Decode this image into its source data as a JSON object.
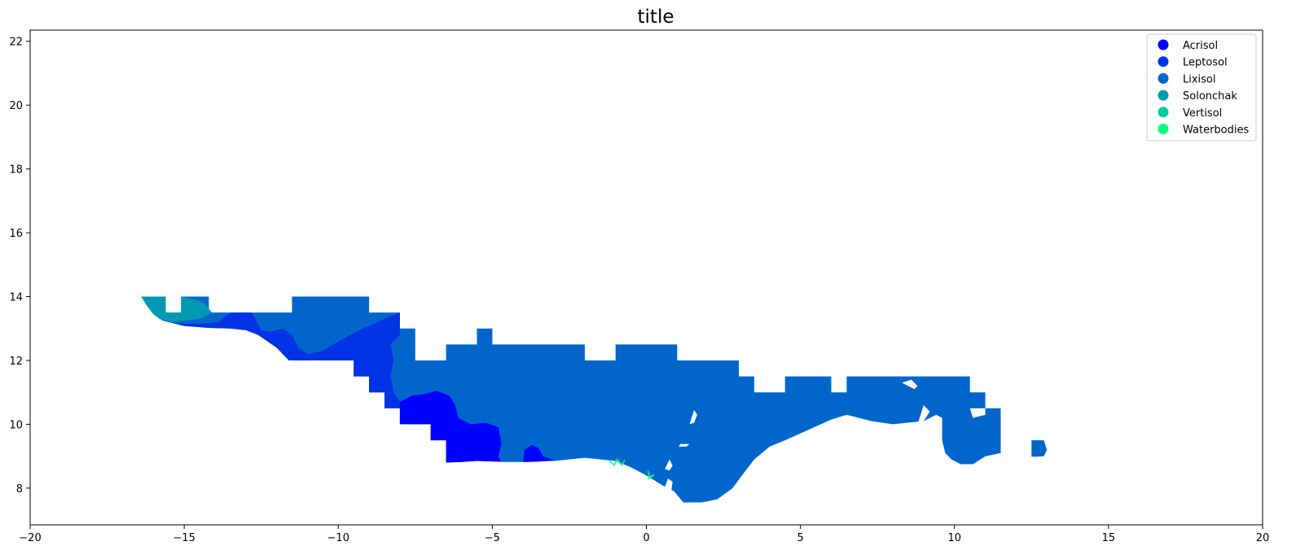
{
  "chart_data": {
    "type": "map",
    "title": "title",
    "xlim": [
      -20,
      20
    ],
    "ylim": [
      6.85,
      22.35
    ],
    "x_ticks": [
      -20,
      -15,
      -10,
      -5,
      0,
      5,
      10,
      15,
      20
    ],
    "x_tick_labels": [
      "−20",
      "−15",
      "−10",
      "−5",
      "0",
      "5",
      "10",
      "15",
      "20"
    ],
    "y_ticks": [
      8,
      10,
      12,
      14,
      16,
      18,
      20,
      22
    ],
    "y_tick_labels": [
      "8",
      "10",
      "12",
      "14",
      "16",
      "18",
      "20",
      "22"
    ],
    "legend_position": "top-right",
    "legend": [
      {
        "label": "Acrisol",
        "color": "#0000ff"
      },
      {
        "label": "Leptosol",
        "color": "#0033e6"
      },
      {
        "label": "Lixisol",
        "color": "#0066cc"
      },
      {
        "label": "Solonchak",
        "color": "#0099b3"
      },
      {
        "label": "Vertisol",
        "color": "#00cc99"
      },
      {
        "label": "Waterbodies",
        "color": "#00ff80"
      }
    ],
    "regions": [
      {
        "class": "Lixisol",
        "polygon": [
          [
            -16.4,
            14.0
          ],
          [
            -15.6,
            14.0
          ],
          [
            -15.6,
            13.5
          ],
          [
            -15.1,
            13.5
          ],
          [
            -15.1,
            14.0
          ],
          [
            -14.2,
            14.0
          ],
          [
            -14.2,
            13.5
          ],
          [
            -11.5,
            13.5
          ],
          [
            -11.5,
            14.0
          ],
          [
            -9.0,
            14.0
          ],
          [
            -9.0,
            13.5
          ],
          [
            -8.0,
            13.5
          ],
          [
            -8.0,
            13.0
          ],
          [
            -7.5,
            13.0
          ],
          [
            -7.5,
            12.0
          ],
          [
            -6.5,
            12.0
          ],
          [
            -6.5,
            12.5
          ],
          [
            -5.5,
            12.5
          ],
          [
            -5.5,
            13.0
          ],
          [
            -5.0,
            13.0
          ],
          [
            -5.0,
            12.5
          ],
          [
            -2.0,
            12.5
          ],
          [
            -2.0,
            12.0
          ],
          [
            -1.0,
            12.0
          ],
          [
            -1.0,
            12.5
          ],
          [
            1.0,
            12.5
          ],
          [
            1.0,
            12.0
          ],
          [
            3.0,
            12.0
          ],
          [
            3.0,
            11.5
          ],
          [
            3.5,
            11.5
          ],
          [
            3.5,
            11.0
          ],
          [
            4.5,
            11.0
          ],
          [
            4.5,
            11.5
          ],
          [
            6.0,
            11.5
          ],
          [
            6.0,
            11.0
          ],
          [
            6.5,
            11.0
          ],
          [
            6.5,
            11.5
          ],
          [
            10.5,
            11.5
          ],
          [
            10.5,
            11.0
          ],
          [
            11.0,
            11.0
          ],
          [
            11.0,
            10.5
          ],
          [
            11.5,
            10.5
          ],
          [
            11.5,
            9.1
          ],
          [
            11.0,
            9.0
          ],
          [
            10.6,
            8.75
          ],
          [
            10.2,
            8.75
          ],
          [
            9.9,
            8.9
          ],
          [
            9.7,
            9.1
          ],
          [
            9.6,
            9.5
          ],
          [
            9.6,
            10.2
          ],
          [
            9.4,
            10.3
          ],
          [
            9.0,
            10.1
          ],
          [
            8.0,
            10.0
          ],
          [
            7.3,
            10.1
          ],
          [
            6.5,
            10.3
          ],
          [
            6.0,
            10.15
          ],
          [
            5.2,
            9.8
          ],
          [
            4.5,
            9.5
          ],
          [
            4.0,
            9.3
          ],
          [
            3.5,
            8.9
          ],
          [
            3.1,
            8.4
          ],
          [
            2.8,
            8.0
          ],
          [
            2.3,
            7.65
          ],
          [
            1.8,
            7.55
          ],
          [
            1.2,
            7.55
          ],
          [
            0.9,
            7.9
          ],
          [
            0.5,
            8.1
          ],
          [
            0.0,
            8.4
          ],
          [
            -0.5,
            8.65
          ],
          [
            -1.0,
            8.85
          ],
          [
            -2.0,
            8.95
          ],
          [
            -3.0,
            8.85
          ],
          [
            -3.8,
            8.82
          ],
          [
            -4.5,
            8.82
          ],
          [
            -5.5,
            8.85
          ],
          [
            -6.0,
            8.82
          ],
          [
            -6.5,
            8.8
          ],
          [
            -6.5,
            9.5
          ],
          [
            -7.0,
            9.5
          ],
          [
            -7.0,
            10.0
          ],
          [
            -8.0,
            10.0
          ],
          [
            -8.0,
            10.5
          ],
          [
            -8.5,
            10.5
          ],
          [
            -8.5,
            11.0
          ],
          [
            -9.0,
            11.0
          ],
          [
            -9.0,
            11.5
          ],
          [
            -9.5,
            11.5
          ],
          [
            -9.5,
            12.0
          ],
          [
            -11.6,
            12.0
          ],
          [
            -12.0,
            12.4
          ],
          [
            -12.3,
            12.6
          ],
          [
            -12.6,
            12.8
          ],
          [
            -13.0,
            12.95
          ],
          [
            -13.5,
            13.0
          ],
          [
            -14.2,
            13.02
          ],
          [
            -15.0,
            13.08
          ],
          [
            -15.7,
            13.25
          ],
          [
            -16.0,
            13.45
          ],
          [
            -16.2,
            13.7
          ]
        ]
      },
      {
        "class": "Leptosol",
        "polygon": [
          [
            -15.7,
            13.25
          ],
          [
            -15.0,
            13.08
          ],
          [
            -14.2,
            13.02
          ],
          [
            -13.5,
            13.0
          ],
          [
            -13.0,
            12.95
          ],
          [
            -12.6,
            12.8
          ],
          [
            -12.3,
            12.6
          ],
          [
            -12.0,
            12.4
          ],
          [
            -11.6,
            12.0
          ],
          [
            -9.5,
            12.0
          ],
          [
            -9.5,
            11.5
          ],
          [
            -9.0,
            11.5
          ],
          [
            -9.0,
            11.0
          ],
          [
            -8.5,
            11.0
          ],
          [
            -8.5,
            10.5
          ],
          [
            -8.0,
            10.5
          ],
          [
            -8.0,
            10.7
          ],
          [
            -8.2,
            11.0
          ],
          [
            -8.3,
            11.5
          ],
          [
            -8.2,
            12.0
          ],
          [
            -8.3,
            12.5
          ],
          [
            -8.0,
            12.8
          ],
          [
            -8.0,
            13.5
          ],
          [
            -8.5,
            13.3
          ],
          [
            -9.2,
            13.0
          ],
          [
            -10.0,
            12.6
          ],
          [
            -10.5,
            12.3
          ],
          [
            -11.0,
            12.2
          ],
          [
            -11.3,
            12.4
          ],
          [
            -11.5,
            12.8
          ],
          [
            -11.8,
            13.0
          ],
          [
            -12.2,
            12.9
          ],
          [
            -12.5,
            12.95
          ],
          [
            -12.8,
            13.5
          ],
          [
            -13.5,
            13.5
          ],
          [
            -13.9,
            13.2
          ],
          [
            -14.5,
            13.15
          ],
          [
            -15.2,
            13.15
          ]
        ]
      },
      {
        "class": "Solonchak",
        "polygon": [
          [
            -16.4,
            14.0
          ],
          [
            -15.6,
            14.0
          ],
          [
            -15.6,
            13.5
          ],
          [
            -15.1,
            13.5
          ],
          [
            -15.1,
            14.0
          ],
          [
            -14.6,
            13.9
          ],
          [
            -14.3,
            13.75
          ],
          [
            -14.1,
            13.5
          ],
          [
            -14.5,
            13.3
          ],
          [
            -15.0,
            13.25
          ],
          [
            -15.4,
            13.2
          ],
          [
            -15.8,
            13.3
          ],
          [
            -16.0,
            13.45
          ],
          [
            -16.2,
            13.7
          ]
        ]
      },
      {
        "class": "Acrisol",
        "polygon": [
          [
            -8.0,
            10.7
          ],
          [
            -7.6,
            10.9
          ],
          [
            -7.2,
            10.95
          ],
          [
            -6.8,
            11.05
          ],
          [
            -6.4,
            10.9
          ],
          [
            -6.2,
            10.6
          ],
          [
            -6.1,
            10.2
          ],
          [
            -5.7,
            10.0
          ],
          [
            -5.2,
            10.05
          ],
          [
            -4.8,
            9.9
          ],
          [
            -4.7,
            9.4
          ],
          [
            -4.8,
            9.0
          ],
          [
            -4.7,
            8.82
          ],
          [
            -4.5,
            8.82
          ],
          [
            -5.5,
            8.85
          ],
          [
            -6.0,
            8.82
          ],
          [
            -6.5,
            8.8
          ],
          [
            -6.5,
            9.5
          ],
          [
            -7.0,
            9.5
          ],
          [
            -7.0,
            10.0
          ],
          [
            -8.0,
            10.0
          ]
        ]
      },
      {
        "class": "Acrisol",
        "polygon": [
          [
            -4.0,
            8.82
          ],
          [
            -3.95,
            9.2
          ],
          [
            -3.7,
            9.35
          ],
          [
            -3.5,
            9.25
          ],
          [
            -3.35,
            9.0
          ],
          [
            -3.0,
            8.88
          ],
          [
            -3.5,
            8.83
          ]
        ]
      },
      {
        "class": "Lixisol",
        "polygon": [
          [
            12.4,
            9.0
          ],
          [
            12.6,
            8.98
          ],
          [
            12.9,
            9.0
          ],
          [
            13.0,
            9.2
          ],
          [
            12.9,
            9.5
          ],
          [
            12.5,
            9.5
          ],
          [
            12.5,
            9.0
          ]
        ]
      }
    ],
    "holes": [
      [
        [
          1.4,
          10.0
        ],
        [
          1.55,
          10.45
        ],
        [
          1.65,
          10.3
        ],
        [
          1.55,
          10.05
        ]
      ],
      [
        [
          1.05,
          9.3
        ],
        [
          1.3,
          9.3
        ],
        [
          1.4,
          9.38
        ],
        [
          1.1,
          9.38
        ]
      ],
      [
        [
          0.6,
          8.6
        ],
        [
          0.75,
          8.9
        ],
        [
          0.85,
          8.7
        ],
        [
          0.75,
          8.55
        ]
      ],
      [
        [
          0.55,
          7.9
        ],
        [
          0.7,
          8.3
        ],
        [
          0.85,
          8.2
        ],
        [
          0.8,
          7.85
        ]
      ],
      [
        [
          8.3,
          11.3
        ],
        [
          8.6,
          11.4
        ],
        [
          8.8,
          11.2
        ],
        [
          8.7,
          11.1
        ],
        [
          8.5,
          11.2
        ]
      ],
      [
        [
          8.8,
          10.0
        ],
        [
          9.0,
          10.6
        ],
        [
          9.2,
          10.4
        ],
        [
          9.0,
          10.1
        ]
      ],
      [
        [
          9.2,
          10.0
        ],
        [
          9.4,
          10.3
        ],
        [
          9.6,
          10.2
        ],
        [
          9.5,
          10.0
        ]
      ],
      [
        [
          10.5,
          10.5
        ],
        [
          11.0,
          10.5
        ],
        [
          11.0,
          10.3
        ],
        [
          10.6,
          10.2
        ]
      ]
    ],
    "vertisol_marks": [
      [
        [
          -1.2,
          8.85
        ],
        [
          -1.05,
          8.72
        ],
        [
          -0.95,
          8.9
        ],
        [
          -0.8,
          8.72
        ],
        [
          -0.7,
          8.88
        ]
      ],
      [
        [
          0.05,
          8.55
        ],
        [
          0.1,
          8.35
        ],
        [
          0.25,
          8.42
        ],
        [
          0.05,
          8.28
        ]
      ]
    ]
  }
}
